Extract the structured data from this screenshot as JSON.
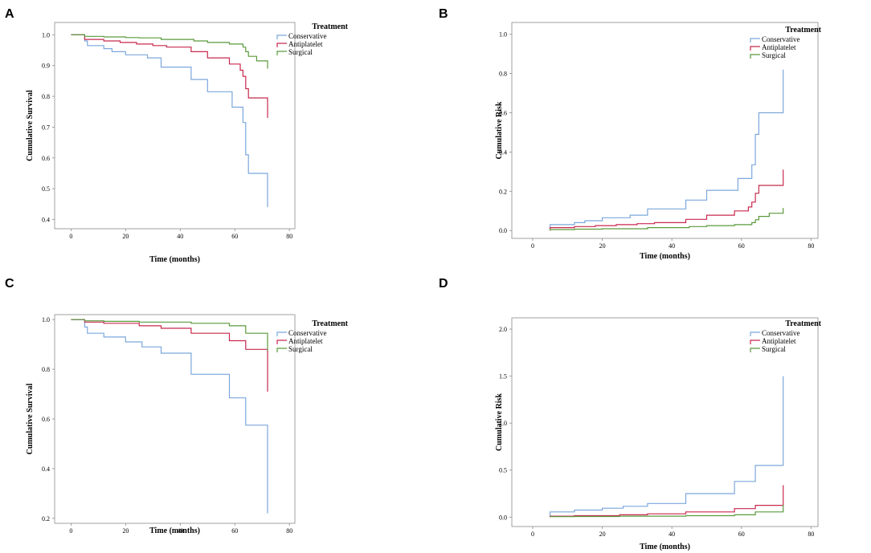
{
  "chart_data": [
    {
      "panel": "A",
      "type": "line",
      "step": true,
      "xlabel": "Time (months)",
      "ylabel": "Cumulative Survival",
      "xlim": [
        -6,
        82
      ],
      "ylim": [
        0.37,
        1.04
      ],
      "xticks": [
        0,
        20,
        40,
        60,
        80
      ],
      "yticks": [
        0.4,
        0.5,
        0.6,
        0.7,
        0.8,
        0.9,
        1.0
      ],
      "ytick_decimals": 1,
      "legend": {
        "title": "Treatment",
        "entries": [
          "Conservative",
          "Antiplatelet",
          "Surgical"
        ]
      },
      "series": [
        {
          "name": "Conservative",
          "color": "#7ba7dc",
          "x": [
            0,
            5,
            6,
            12,
            15,
            20,
            28,
            33,
            44,
            50,
            59,
            63,
            64,
            65,
            72,
            72
          ],
          "y": [
            1.0,
            0.98,
            0.965,
            0.955,
            0.945,
            0.935,
            0.925,
            0.895,
            0.855,
            0.815,
            0.765,
            0.715,
            0.61,
            0.55,
            0.55,
            0.44
          ]
        },
        {
          "name": "Antiplatelet",
          "color": "#c8294d",
          "x": [
            0,
            5,
            12,
            18,
            24,
            30,
            35,
            44,
            50,
            58,
            62,
            63,
            64,
            65,
            72,
            72
          ],
          "y": [
            1.0,
            0.985,
            0.98,
            0.975,
            0.97,
            0.965,
            0.96,
            0.945,
            0.925,
            0.905,
            0.885,
            0.865,
            0.825,
            0.795,
            0.795,
            0.73
          ]
        },
        {
          "name": "Surgical",
          "color": "#5a9a3c",
          "x": [
            0,
            5,
            12,
            20,
            25,
            33,
            45,
            50,
            58,
            63,
            64,
            65,
            68,
            72,
            72
          ],
          "y": [
            1.0,
            0.995,
            0.993,
            0.991,
            0.99,
            0.985,
            0.98,
            0.975,
            0.97,
            0.96,
            0.945,
            0.93,
            0.915,
            0.915,
            0.89
          ]
        }
      ]
    },
    {
      "panel": "B",
      "type": "line",
      "step": true,
      "xlabel": "Time (months)",
      "ylabel": "Cumulative Risk",
      "xlim": [
        -6,
        82
      ],
      "ylim": [
        -0.04,
        1.06
      ],
      "xticks": [
        0,
        20,
        40,
        60,
        80
      ],
      "yticks": [
        0.0,
        0.2,
        0.4,
        0.6,
        0.8,
        1.0
      ],
      "ytick_decimals": 1,
      "legend": {
        "title": "Treatment",
        "entries": [
          "Conservative",
          "Antiplatelet",
          "Surgical"
        ]
      },
      "series": [
        {
          "name": "Conservative",
          "color": "#7ba7dc",
          "x": [
            5,
            5,
            12,
            15,
            20,
            28,
            33,
            44,
            50,
            59,
            63,
            64,
            65,
            72,
            72
          ],
          "y": [
            0.0,
            0.03,
            0.04,
            0.05,
            0.065,
            0.078,
            0.11,
            0.155,
            0.205,
            0.265,
            0.335,
            0.49,
            0.6,
            0.6,
            0.82
          ]
        },
        {
          "name": "Antiplatelet",
          "color": "#c8294d",
          "x": [
            5,
            5,
            12,
            18,
            24,
            30,
            35,
            44,
            50,
            58,
            62,
            63,
            64,
            65,
            72,
            72
          ],
          "y": [
            0.0,
            0.015,
            0.02,
            0.025,
            0.03,
            0.035,
            0.04,
            0.057,
            0.078,
            0.1,
            0.12,
            0.145,
            0.19,
            0.23,
            0.23,
            0.31
          ]
        },
        {
          "name": "Surgical",
          "color": "#5a9a3c",
          "x": [
            5,
            5,
            12,
            20,
            33,
            45,
            50,
            58,
            63,
            64,
            65,
            68,
            72,
            72
          ],
          "y": [
            0.0,
            0.005,
            0.007,
            0.009,
            0.015,
            0.02,
            0.025,
            0.03,
            0.04,
            0.055,
            0.072,
            0.088,
            0.088,
            0.115
          ]
        }
      ]
    },
    {
      "panel": "C",
      "type": "line",
      "step": true,
      "xlabel": "Time (months)",
      "ylabel": "Cumulative Survival",
      "xlim": [
        -6,
        82
      ],
      "ylim": [
        0.18,
        1.02
      ],
      "xticks": [
        0,
        20,
        40,
        60,
        80
      ],
      "yticks": [
        0.2,
        0.4,
        0.6,
        0.8,
        1.0
      ],
      "ytick_decimals": 1,
      "legend": {
        "title": "Treatment",
        "entries": [
          "Conservative",
          "Antiplatelet",
          "Surgical"
        ]
      },
      "series": [
        {
          "name": "Conservative",
          "color": "#7ba7dc",
          "x": [
            0,
            5,
            6,
            12,
            20,
            26,
            33,
            44,
            58,
            64,
            72,
            72
          ],
          "y": [
            1.0,
            0.97,
            0.945,
            0.93,
            0.91,
            0.89,
            0.865,
            0.78,
            0.685,
            0.575,
            0.575,
            0.22
          ]
        },
        {
          "name": "Antiplatelet",
          "color": "#c8294d",
          "x": [
            0,
            5,
            12,
            25,
            33,
            44,
            58,
            64,
            72,
            72
          ],
          "y": [
            1.0,
            0.99,
            0.985,
            0.975,
            0.965,
            0.945,
            0.915,
            0.88,
            0.88,
            0.71
          ]
        },
        {
          "name": "Surgical",
          "color": "#5a9a3c",
          "x": [
            0,
            5,
            12,
            25,
            44,
            58,
            64,
            72,
            72
          ],
          "y": [
            1.0,
            0.995,
            0.993,
            0.99,
            0.985,
            0.975,
            0.945,
            0.945,
            0.875
          ]
        }
      ]
    },
    {
      "panel": "D",
      "type": "line",
      "step": true,
      "xlabel": "Time (months)",
      "ylabel": "Cumulative Risk",
      "xlim": [
        -6,
        82
      ],
      "ylim": [
        -0.1,
        2.12
      ],
      "xticks": [
        0,
        20,
        40,
        60,
        80
      ],
      "yticks": [
        0.0,
        0.5,
        1.0,
        1.5,
        2.0
      ],
      "ytick_decimals": 1,
      "legend": {
        "title": "Treatment",
        "entries": [
          "Conservative",
          "Antiplatelet",
          "Surgical"
        ]
      },
      "series": [
        {
          "name": "Conservative",
          "color": "#7ba7dc",
          "x": [
            5,
            5,
            12,
            20,
            26,
            33,
            44,
            58,
            64,
            72,
            72
          ],
          "y": [
            0.0,
            0.055,
            0.075,
            0.095,
            0.115,
            0.145,
            0.25,
            0.38,
            0.55,
            0.55,
            1.5
          ]
        },
        {
          "name": "Antiplatelet",
          "color": "#c8294d",
          "x": [
            5,
            5,
            12,
            25,
            33,
            44,
            58,
            64,
            72,
            72
          ],
          "y": [
            0.0,
            0.01,
            0.015,
            0.025,
            0.035,
            0.055,
            0.09,
            0.125,
            0.125,
            0.34
          ]
        },
        {
          "name": "Surgical",
          "color": "#5a9a3c",
          "x": [
            5,
            5,
            12,
            25,
            44,
            58,
            64,
            72,
            72
          ],
          "y": [
            0.0,
            0.005,
            0.007,
            0.01,
            0.015,
            0.025,
            0.055,
            0.055,
            0.13
          ]
        }
      ]
    }
  ]
}
